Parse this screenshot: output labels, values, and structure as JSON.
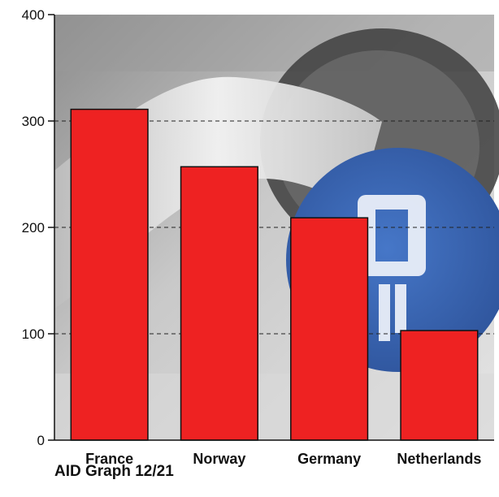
{
  "chart_data": {
    "type": "bar",
    "title": "",
    "xlabel": "",
    "ylabel": "",
    "categories": [
      "France",
      "Norway",
      "Germany",
      "Netherlands"
    ],
    "values": [
      311,
      257,
      209,
      103
    ],
    "ylim": [
      0,
      400
    ],
    "yticks": [
      0,
      100,
      200,
      300,
      400
    ],
    "grid": "horizontal dashed",
    "legend": "none",
    "bar_color": "#ee2222",
    "bar_stroke": "#111111",
    "background": "photo of EV charging plug (grey tones, blue socket)"
  },
  "footer": {
    "source_label": "AID Graph 12/21"
  },
  "colors": {
    "photo_light": "#d9d9d9",
    "photo_mid": "#a7a7a7",
    "socket_blue": "#3a67b8"
  }
}
